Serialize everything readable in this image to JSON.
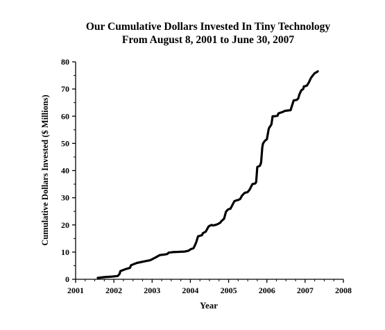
{
  "chart_data": {
    "type": "line",
    "title": "Our Cumulative Dollars Invested In Tiny Technology",
    "subtitle": "From August 8, 2001 to June 30, 2007",
    "xlabel": "Year",
    "ylabel": "Cumulative Dollars Invested ($ Millions)",
    "xlim": [
      2001,
      2008
    ],
    "ylim": [
      0,
      80
    ],
    "x_ticks": [
      2001,
      2002,
      2003,
      2004,
      2005,
      2006,
      2007,
      2008
    ],
    "y_ticks": [
      0,
      10,
      20,
      30,
      40,
      50,
      60,
      70,
      80
    ],
    "grid": false,
    "series": [
      {
        "color": "#000000",
        "x": [
          2001.58,
          2001.75,
          2001.95,
          2002.1,
          2002.15,
          2002.17,
          2002.3,
          2002.42,
          2002.45,
          2002.6,
          2002.8,
          2002.95,
          2003.1,
          2003.2,
          2003.32,
          2003.4,
          2003.43,
          2003.55,
          2003.7,
          2003.85,
          2003.95,
          2004.0,
          2004.03,
          2004.08,
          2004.12,
          2004.15,
          2004.2,
          2004.25,
          2004.3,
          2004.33,
          2004.4,
          2004.48,
          2004.55,
          2004.6,
          2004.65,
          2004.7,
          2004.78,
          2004.82,
          2004.88,
          2004.93,
          2004.97,
          2005.0,
          2005.05,
          2005.15,
          2005.2,
          2005.25,
          2005.3,
          2005.35,
          2005.42,
          2005.48,
          2005.5,
          2005.55,
          2005.62,
          2005.7,
          2005.72,
          2005.75,
          2005.78,
          2005.82,
          2005.85,
          2005.88,
          2005.9,
          2005.95,
          2006.0,
          2006.05,
          2006.12,
          2006.15,
          2006.2,
          2006.28,
          2006.3,
          2006.4,
          2006.48,
          2006.5,
          2006.55,
          2006.62,
          2006.7,
          2006.78,
          2006.82,
          2006.85,
          2006.9,
          2006.95,
          2006.97,
          2007.0,
          2007.05,
          2007.1,
          2007.15,
          2007.2,
          2007.25,
          2007.3,
          2007.33
        ],
        "y": [
          0.5,
          0.8,
          1.0,
          1.2,
          2.0,
          3.0,
          3.7,
          4.2,
          5.2,
          6.0,
          6.6,
          7.0,
          8.1,
          8.9,
          9.1,
          9.3,
          9.8,
          10.0,
          10.1,
          10.2,
          10.5,
          11.0,
          11.2,
          11.4,
          12.5,
          13.5,
          15.8,
          16.0,
          16.2,
          17.0,
          17.5,
          19.5,
          20.0,
          19.8,
          20.0,
          20.2,
          20.8,
          21.5,
          22.3,
          24.8,
          25.5,
          25.8,
          26.0,
          28.7,
          29.0,
          29.2,
          29.5,
          30.8,
          31.8,
          32.0,
          32.1,
          33.0,
          35.0,
          35.3,
          35.8,
          41.3,
          41.5,
          41.8,
          43.0,
          48.5,
          50.0,
          51.0,
          51.5,
          55.5,
          57.0,
          60.0,
          60.0,
          60.2,
          61.0,
          61.5,
          62.0,
          62.0,
          62.1,
          62.2,
          65.8,
          66.0,
          66.5,
          68.0,
          69.5,
          70.0,
          71.0,
          71.0,
          71.3,
          72.5,
          74.0,
          75.0,
          75.8,
          76.2,
          76.5
        ]
      }
    ]
  }
}
